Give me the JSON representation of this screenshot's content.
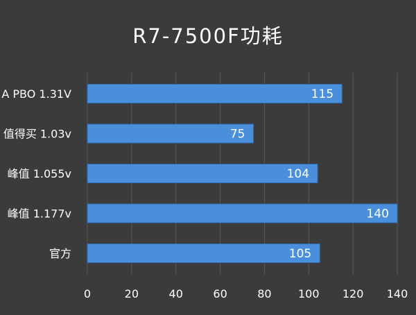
{
  "colors": {
    "background": "#3b3b3b",
    "bar_fill": "#4a8fdc",
    "bar_stroke": "#2f6fb8",
    "grid": "#5a5a5a",
    "text": "#ffffff"
  },
  "chart_data": {
    "type": "bar",
    "orientation": "horizontal",
    "title": "R7-7500F功耗",
    "categories": [
      "A PBO 1.31V",
      "值得买 1.03v",
      "峰值 1.055v",
      "峰值 1.177v",
      "官方"
    ],
    "values": [
      115,
      75,
      104,
      140,
      105
    ],
    "data_labels": [
      "115",
      "75",
      "104",
      "140",
      "105"
    ],
    "xlim": [
      0,
      140
    ],
    "xticks": [
      0,
      20,
      40,
      60,
      80,
      100,
      120,
      140
    ],
    "xtick_labels": [
      "0",
      "20",
      "40",
      "60",
      "80",
      "100",
      "120",
      "140"
    ],
    "grid": true,
    "legend": "none"
  }
}
